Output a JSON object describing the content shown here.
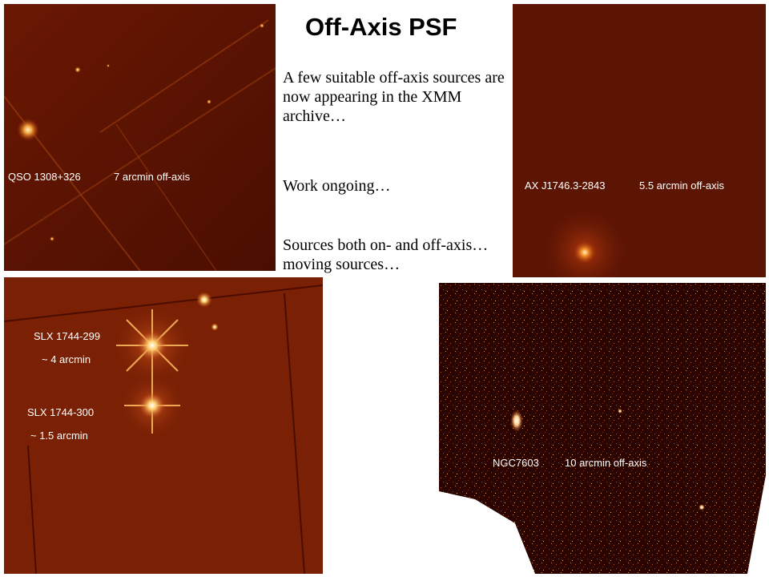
{
  "slide": {
    "title": "Off-Axis PSF",
    "paragraphs": [
      "A few suitable off-axis sources are now appearing in the XMM archive…",
      "Work ongoing…",
      "Sources both on- and off-axis… moving sources…"
    ]
  },
  "panels": [
    {
      "id": "qso",
      "captions": [
        {
          "text": "QSO 1308+326"
        },
        {
          "text": "7 arcmin off-axis"
        }
      ]
    },
    {
      "id": "axj",
      "captions": [
        {
          "text": "AX J1746.3-2843"
        },
        {
          "text": "5.5 arcmin off-axis"
        }
      ]
    },
    {
      "id": "slx",
      "captions": [
        {
          "text": "SLX 1744-299"
        },
        {
          "text": "~ 4 arcmin"
        },
        {
          "text": "SLX 1744-300"
        },
        {
          "text": "~ 1.5 arcmin"
        }
      ]
    },
    {
      "id": "ngc",
      "captions": [
        {
          "text": "NGC7603"
        },
        {
          "text": "10 arcmin off-axis"
        }
      ]
    }
  ],
  "colors": {
    "image_dark": "#3a0800",
    "image_mid": "#6e1a03",
    "image_bright": "#ffd070",
    "caption": "#ffffff"
  }
}
